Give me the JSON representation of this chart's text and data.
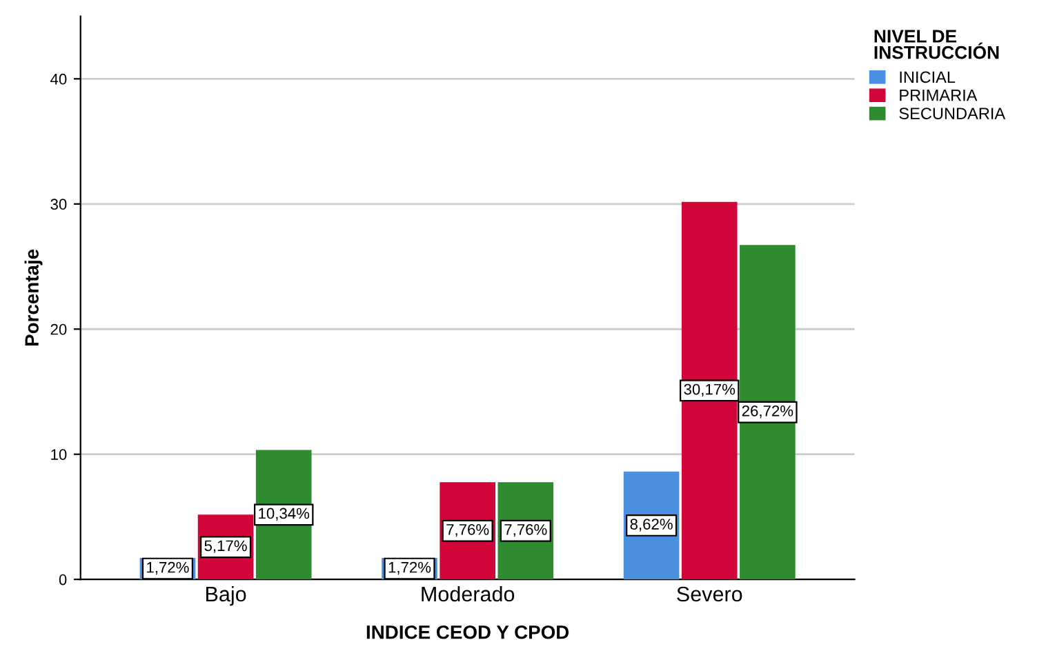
{
  "chart_data": {
    "type": "bar",
    "xlabel": "INDICE CEOD Y CPOD",
    "ylabel": "Porcentaje",
    "legend_title": "NIVEL DE INSTRUCCIÓN",
    "categories": [
      "Bajo",
      "Moderado",
      "Severo"
    ],
    "series": [
      {
        "name": "INICIAL",
        "color": "#4a8fe0",
        "values": [
          1.72,
          1.72,
          8.62
        ],
        "value_labels": [
          "1,72%",
          "1,72%",
          "8,62%"
        ]
      },
      {
        "name": "PRIMARIA",
        "color": "#d3063a",
        "values": [
          5.17,
          7.76,
          30.17
        ],
        "value_labels": [
          "5,17%",
          "7,76%",
          "30,17%"
        ]
      },
      {
        "name": "SECUNDARIA",
        "color": "#2e8b30",
        "values": [
          10.34,
          7.76,
          26.72
        ],
        "value_labels": [
          "10,34%",
          "7,76%",
          "26,72%"
        ]
      }
    ],
    "ylim": [
      0,
      45
    ],
    "yticks": [
      0,
      10,
      20,
      30,
      40
    ],
    "grid": "y",
    "legend": "top right"
  }
}
